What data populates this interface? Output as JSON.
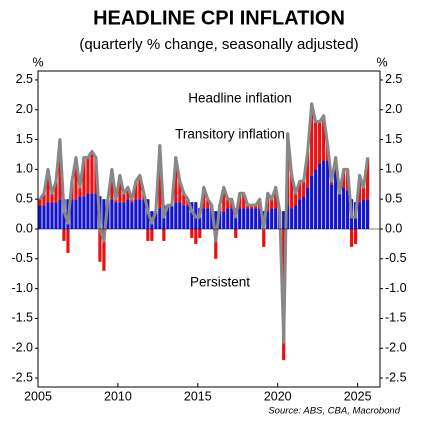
{
  "chart_data": {
    "type": "stacked_bar_line",
    "title": "HEADLINE CPI INFLATION",
    "subtitle": "(quarterly % change, seasonally adjusted)",
    "y_axis_label": "%",
    "y2_axis_label": "%",
    "source": "Source: ABS, CBA, Macrobond",
    "x": [
      2005,
      2005.25,
      2005.5,
      2005.75,
      2006,
      2006.25,
      2006.5,
      2006.75,
      2007,
      2007.25,
      2007.5,
      2007.75,
      2008,
      2008.25,
      2008.5,
      2008.75,
      2009,
      2009.25,
      2009.5,
      2009.75,
      2010,
      2010.25,
      2010.5,
      2010.75,
      2011,
      2011.25,
      2011.5,
      2011.75,
      2012,
      2012.25,
      2012.5,
      2012.75,
      2013,
      2013.25,
      2013.5,
      2013.75,
      2014,
      2014.25,
      2014.5,
      2014.75,
      2015,
      2015.25,
      2015.5,
      2015.75,
      2016,
      2016.25,
      2016.5,
      2016.75,
      2017,
      2017.25,
      2017.5,
      2017.75,
      2018,
      2018.25,
      2018.5,
      2018.75,
      2019,
      2019.25,
      2019.5,
      2019.75,
      2020,
      2020.25,
      2020.5,
      2020.75,
      2021,
      2021.25,
      2021.5,
      2021.75,
      2022,
      2022.25,
      2022.5,
      2022.75,
      2023,
      2023.25,
      2023.5,
      2023.75,
      2024,
      2024.25,
      2024.5,
      2024.75,
      2025,
      2025.25,
      2025.5
    ],
    "series": [
      {
        "name": "Persistent",
        "color": "#1414c8",
        "kind": "bar",
        "values": [
          0.4,
          0.4,
          0.45,
          0.45,
          0.45,
          0.5,
          0.5,
          0.5,
          0.5,
          0.5,
          0.55,
          0.55,
          0.6,
          0.6,
          0.6,
          0.55,
          0.5,
          0.5,
          0.5,
          0.45,
          0.45,
          0.45,
          0.5,
          0.45,
          0.5,
          0.5,
          0.5,
          0.5,
          0.3,
          0.3,
          0.35,
          0.4,
          0.4,
          0.4,
          0.45,
          0.45,
          0.4,
          0.4,
          0.45,
          0.45,
          0.35,
          0.35,
          0.35,
          0.4,
          0.3,
          0.3,
          0.3,
          0.35,
          0.35,
          0.35,
          0.35,
          0.35,
          0.35,
          0.35,
          0.35,
          0.35,
          0.3,
          0.3,
          0.35,
          0.35,
          0.3,
          0.3,
          0.4,
          0.35,
          0.4,
          0.5,
          0.55,
          0.7,
          0.9,
          1.0,
          1.1,
          1.15,
          1.15,
          0.75,
          1.0,
          0.6,
          0.7,
          0.65,
          0.5,
          0.45,
          0.45,
          0.5,
          0.5
        ]
      },
      {
        "name": "Transitory inflation",
        "color": "#e81010",
        "kind": "bar",
        "values": [
          0.1,
          0.2,
          0.55,
          0.15,
          0.35,
          1.0,
          -0.2,
          -0.4,
          0.3,
          0.7,
          0.15,
          0.65,
          0.6,
          0.7,
          0.6,
          -0.55,
          -0.7,
          0,
          0.5,
          0.05,
          0.45,
          0.15,
          0.2,
          0.05,
          0.3,
          0.4,
          0.1,
          -0.2,
          -0.2,
          0,
          1.05,
          -0.2,
          0,
          0,
          0.75,
          0.35,
          0.2,
          0.1,
          -0.15,
          -0.25,
          -0.15,
          0.35,
          0.15,
          0,
          -0.5,
          0.1,
          0.4,
          0.15,
          0.15,
          -0.15,
          0.25,
          0.25,
          0.05,
          0.05,
          0.05,
          0.15,
          -0.3,
          0.3,
          0.15,
          0.35,
          0,
          -2.2,
          1.2,
          0.55,
          0.2,
          0.3,
          0.25,
          0.6,
          1.2,
          0.8,
          0.7,
          0.75,
          0.25,
          0.05,
          0.2,
          0,
          0.3,
          0.35,
          -0.3,
          -0.25,
          0.45,
          0.2,
          0.7
        ]
      },
      {
        "name": "Headline inflation",
        "color": "#888888",
        "kind": "line",
        "values": [
          0.5,
          0.6,
          1.0,
          0.6,
          0.8,
          1.5,
          0.3,
          0.1,
          0.8,
          1.2,
          0.7,
          1.2,
          1.2,
          1.3,
          1.2,
          0.0,
          -0.2,
          0.5,
          1.0,
          0.5,
          0.9,
          0.6,
          0.7,
          0.5,
          0.8,
          0.9,
          0.6,
          0.3,
          0.1,
          0.3,
          1.4,
          0.2,
          0.4,
          0.4,
          1.2,
          0.8,
          0.6,
          0.5,
          0.3,
          0.2,
          0.2,
          0.7,
          0.5,
          0.4,
          -0.2,
          0.4,
          0.7,
          0.5,
          0.5,
          0.2,
          0.6,
          0.6,
          0.4,
          0.4,
          0.4,
          0.5,
          0.0,
          0.6,
          0.5,
          0.7,
          0.3,
          -1.9,
          1.6,
          0.9,
          0.6,
          0.8,
          0.8,
          1.3,
          2.1,
          1.8,
          1.8,
          1.9,
          1.4,
          0.8,
          1.2,
          0.6,
          1.0,
          1.0,
          0.2,
          0.2,
          0.9,
          0.7,
          1.2
        ]
      }
    ],
    "xlim": [
      2005,
      2026.4
    ],
    "xticks": [
      2005,
      2010,
      2015,
      2020,
      2025
    ],
    "ylim": [
      -2.65,
      2.65
    ],
    "yticks": [
      2.5,
      {
        "value": 2,
        "label": "2.0"
      },
      1.5,
      {
        "value": 1,
        "label": "1.0"
      },
      0.5,
      {
        "value": 0,
        "label": "0.0"
      },
      -0.5,
      {
        "value": -1,
        "label": "-1.0"
      },
      -1.5,
      {
        "value": -2,
        "label": "-2.0"
      },
      -2.5
    ]
  }
}
